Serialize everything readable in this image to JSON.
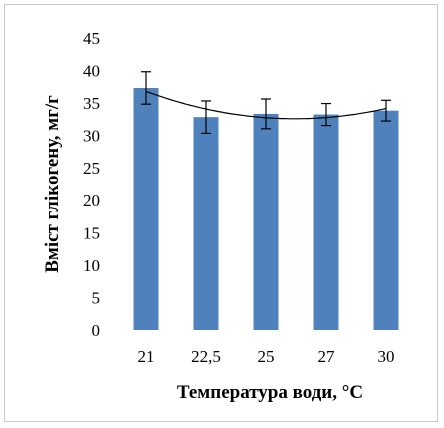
{
  "chart_data": {
    "type": "bar",
    "title": "",
    "xlabel": "Температура води, °С",
    "ylabel": "Вміст глікогену, мг/г",
    "categories": [
      "21",
      "22,5",
      "25",
      "27",
      "30"
    ],
    "series": [
      {
        "values": [
          37.3,
          32.8,
          33.3,
          33.2,
          33.8
        ],
        "error": [
          2.5,
          2.5,
          2.3,
          1.7,
          1.6
        ]
      }
    ],
    "trendline": {
      "type": "polynomial",
      "order": 2
    },
    "ylim": [
      0,
      45
    ],
    "yticks": [
      0,
      5,
      10,
      15,
      20,
      25,
      30,
      35,
      40,
      45
    ],
    "grid": false,
    "legend": "none",
    "colors": {
      "bar": "#4f81bd",
      "trend": "#000000",
      "error": "#000000"
    }
  }
}
